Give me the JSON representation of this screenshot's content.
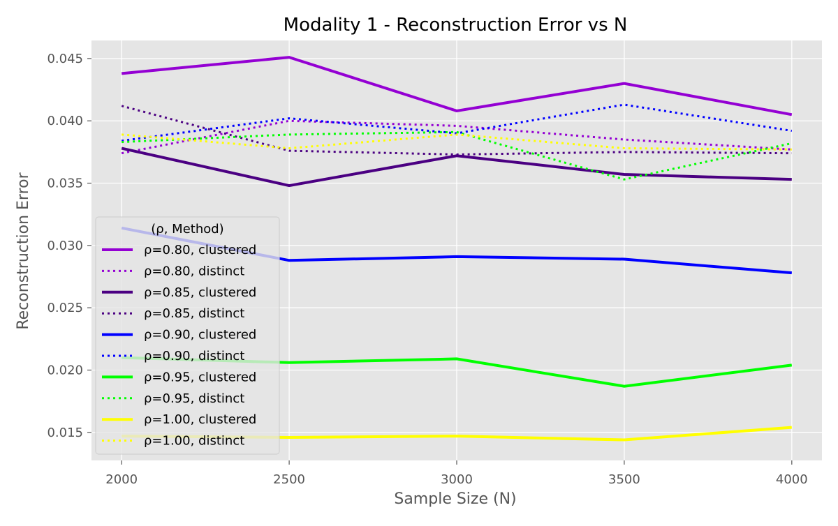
{
  "chart_data": {
    "type": "line",
    "title": "Modality 1 - Reconstruction Error vs N",
    "xlabel": "Sample Size (N)",
    "ylabel": "Reconstruction Error",
    "x": [
      2000,
      2500,
      3000,
      3500,
      4000
    ],
    "xlim": [
      1910,
      4090
    ],
    "ylim": [
      0.01275,
      0.04645
    ],
    "xticks": [
      2000,
      2500,
      3000,
      3500,
      4000
    ],
    "yticks": [
      0.015,
      0.02,
      0.025,
      0.03,
      0.035,
      0.04,
      0.045
    ],
    "xtick_labels": [
      "2000",
      "2500",
      "3000",
      "3500",
      "4000"
    ],
    "ytick_labels": [
      "0.015",
      "0.020",
      "0.025",
      "0.030",
      "0.035",
      "0.040",
      "0.045"
    ],
    "grid": true,
    "legend": {
      "title": "(ρ, Method)",
      "placement": "lower-left"
    },
    "series": [
      {
        "name": "ρ=0.80, clustered",
        "color": "#9400D3",
        "style": "solid",
        "values": [
          0.0438,
          0.0451,
          0.0408,
          0.043,
          0.0405
        ]
      },
      {
        "name": "ρ=0.80, distinct",
        "color": "#9400D3",
        "style": "dotted",
        "values": [
          0.0374,
          0.04,
          0.0396,
          0.0385,
          0.0377
        ]
      },
      {
        "name": "ρ=0.85, clustered",
        "color": "#4B0082",
        "style": "solid",
        "values": [
          0.0378,
          0.0348,
          0.0372,
          0.0357,
          0.0353
        ]
      },
      {
        "name": "ρ=0.85, distinct",
        "color": "#4B0082",
        "style": "dotted",
        "values": [
          0.0412,
          0.0376,
          0.0373,
          0.0375,
          0.0374
        ]
      },
      {
        "name": "ρ=0.90, clustered",
        "color": "#0000FF",
        "style": "solid",
        "values": [
          0.0314,
          0.0288,
          0.0291,
          0.0289,
          0.0278
        ]
      },
      {
        "name": "ρ=0.90, distinct",
        "color": "#0000FF",
        "style": "dotted",
        "values": [
          0.0384,
          0.0402,
          0.039,
          0.0413,
          0.0392
        ]
      },
      {
        "name": "ρ=0.95, clustered",
        "color": "#00FF00",
        "style": "solid",
        "values": [
          0.021,
          0.0206,
          0.0209,
          0.0187,
          0.0204
        ]
      },
      {
        "name": "ρ=0.95, distinct",
        "color": "#00FF00",
        "style": "dotted",
        "values": [
          0.0383,
          0.0389,
          0.0391,
          0.0353,
          0.0382
        ]
      },
      {
        "name": "ρ=1.00, clustered",
        "color": "#FFFF00",
        "style": "solid",
        "values": [
          0.0147,
          0.0146,
          0.0147,
          0.0144,
          0.0154
        ]
      },
      {
        "name": "ρ=1.00, distinct",
        "color": "#FFFF00",
        "style": "dotted",
        "values": [
          0.0389,
          0.0378,
          0.0389,
          0.0378,
          0.0377
        ]
      }
    ]
  }
}
